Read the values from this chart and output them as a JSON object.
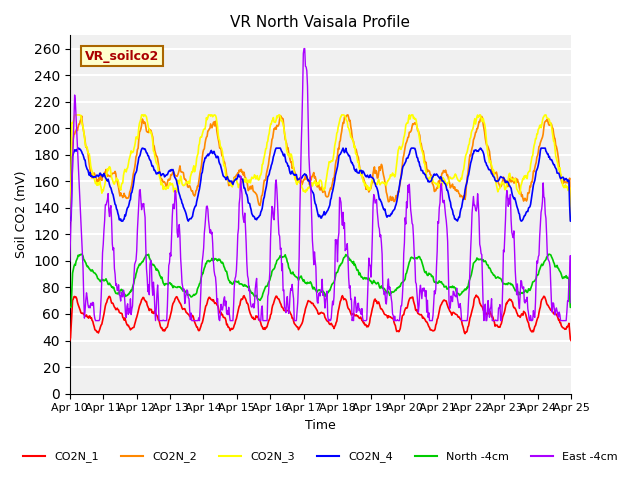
{
  "title": "VR North Vaisala Profile",
  "ylabel": "Soil CO2 (mV)",
  "xlabel": "Time",
  "box_label": "VR_soilco2",
  "ylim": [
    0,
    270
  ],
  "yticks": [
    0,
    20,
    40,
    60,
    80,
    100,
    120,
    140,
    160,
    180,
    200,
    220,
    240,
    260
  ],
  "xtick_labels": [
    "Apr 10",
    "Apr 11",
    "Apr 12",
    "Apr 13",
    "Apr 14",
    "Apr 15",
    "Apr 16",
    "Apr 17",
    "Apr 18",
    "Apr 19",
    "Apr 20",
    "Apr 21",
    "Apr 22",
    "Apr 23",
    "Apr 24",
    "Apr 25"
  ],
  "series_colors": {
    "CO2N_1": "#ff0000",
    "CO2N_2": "#ff8800",
    "CO2N_3": "#ffff00",
    "CO2N_4": "#0000ff",
    "North -4cm": "#00cc00",
    "East -4cm": "#aa00ff"
  },
  "background_color": "#f0f0f0",
  "plot_bg_color": "#f0f0f0",
  "legend_entries": [
    "CO2N_1",
    "CO2N_2",
    "CO2N_3",
    "CO2N_4",
    "North -4cm",
    "East -4cm"
  ]
}
